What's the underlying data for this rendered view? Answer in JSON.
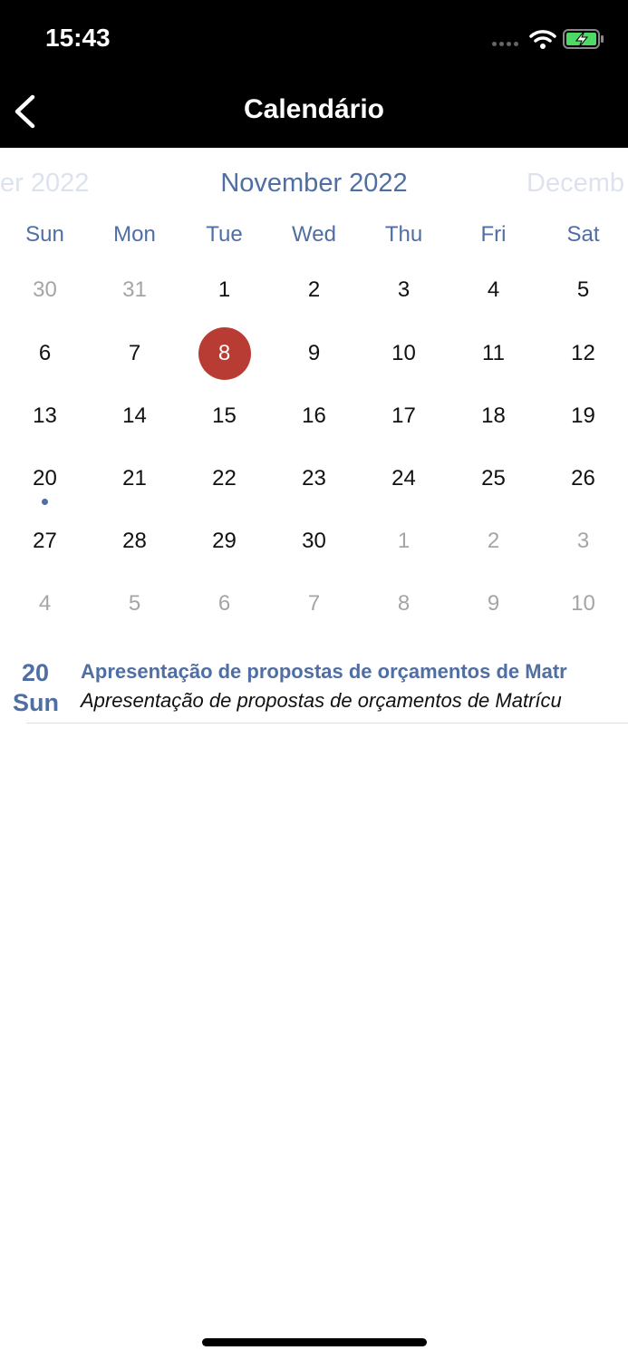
{
  "status_bar": {
    "time": "15:43",
    "icons": [
      "signal-dots-icon",
      "wifi-icon",
      "battery-charging-icon"
    ],
    "battery_color": "#4cd964"
  },
  "nav": {
    "title": "Calendário",
    "back_icon": "chevron-left-icon"
  },
  "calendar": {
    "prev_month": "er 2022",
    "current_month": "November 2022",
    "next_month": "Decemb",
    "weekdays": [
      "Sun",
      "Mon",
      "Tue",
      "Wed",
      "Thu",
      "Fri",
      "Sat"
    ],
    "weeks": [
      [
        "30",
        "31",
        "1",
        "2",
        "3",
        "4",
        "5"
      ],
      [
        "6",
        "7",
        "8",
        "9",
        "10",
        "11",
        "12"
      ],
      [
        "13",
        "14",
        "15",
        "16",
        "17",
        "18",
        "19"
      ],
      [
        "20",
        "21",
        "22",
        "23",
        "24",
        "25",
        "26"
      ],
      [
        "27",
        "28",
        "29",
        "30",
        "1",
        "2",
        "3"
      ],
      [
        "4",
        "5",
        "6",
        "7",
        "8",
        "9",
        "10"
      ]
    ],
    "selected_day": "8",
    "event_days": [
      "20"
    ],
    "colors": {
      "accent": "#4f6ea3",
      "selected": "#b83c33"
    }
  },
  "events": [
    {
      "day": "20",
      "weekday": "Sun",
      "title": "Apresentação de propostas de orçamentos de Matr",
      "subtitle": "Apresentação de propostas de orçamentos de Matrícu"
    }
  ]
}
